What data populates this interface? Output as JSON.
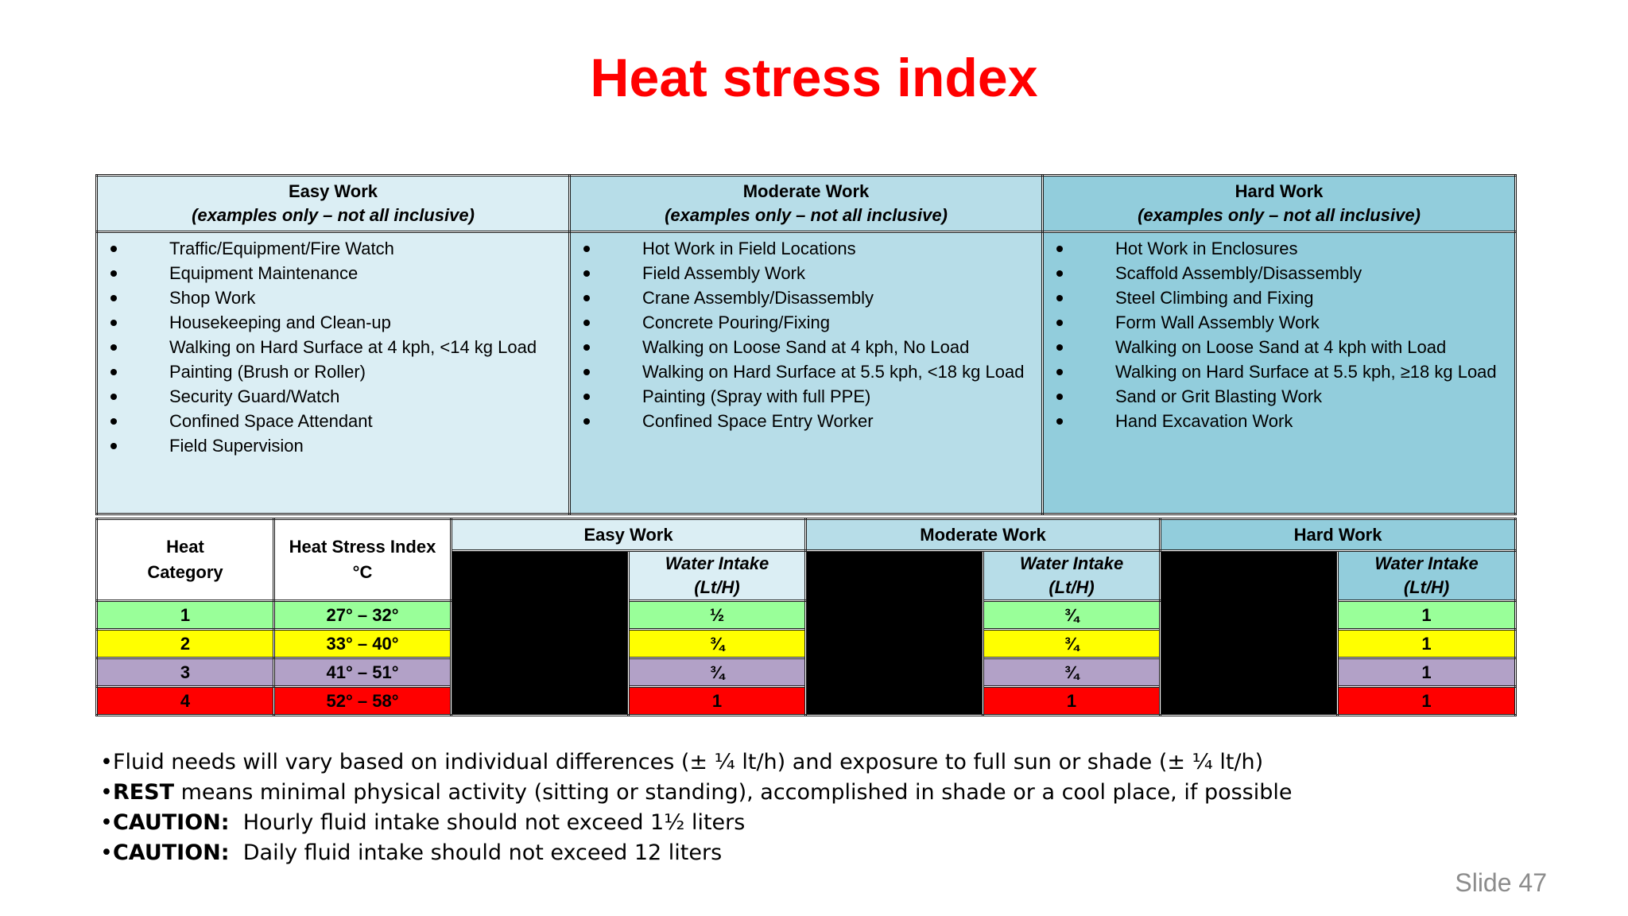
{
  "title": "Heat stress index",
  "work_types": [
    {
      "name": "Easy Work",
      "subtitle": "(examples only – not all inclusive)",
      "examples": [
        "Traffic/Equipment/Fire Watch",
        "Equipment Maintenance",
        "Shop Work",
        "Housekeeping and Clean-up",
        "Walking on Hard Surface at 4 kph, <14 kg Load",
        "Painting (Brush or Roller)",
        "Security Guard/Watch",
        "Confined Space Attendant",
        "Field Supervision"
      ]
    },
    {
      "name": "Moderate Work",
      "subtitle": "(examples only – not all inclusive)",
      "examples": [
        "Hot Work in Field Locations",
        "Field Assembly Work",
        "Crane Assembly/Disassembly",
        "Concrete Pouring/Fixing",
        "Walking on Loose Sand at 4 kph, No Load",
        "Walking on Hard Surface at 5.5 kph, <18 kg Load",
        "Painting (Spray with full PPE)",
        "Confined Space Entry Worker"
      ]
    },
    {
      "name": "Hard Work",
      "subtitle": "(examples only – not all inclusive)",
      "examples": [
        "Hot Work in Enclosures",
        "Scaffold Assembly/Disassembly",
        "Steel Climbing and Fixing",
        "Form Wall Assembly Work",
        "Walking on Loose Sand at 4 kph with Load",
        "Walking on Hard Surface at 5.5 kph, ≥18 kg Load",
        "Sand or Grit Blasting Work",
        "Hand Excavation Work"
      ]
    }
  ],
  "index_table": {
    "heat_category_header": "Heat\nCategory",
    "heat_category_line1": "Heat",
    "heat_category_line2": "Category",
    "hsi_line1": "Heat Stress Index",
    "hsi_line2": "°C",
    "group_headers": [
      "Easy Work",
      "Moderate Work",
      "Hard Work"
    ],
    "water_line1": "Water Intake",
    "water_line2": "(Lt/H)",
    "rows": [
      {
        "category": "1",
        "range": "27° – 32°",
        "easy": "½",
        "moderate": "¾",
        "hard": "1"
      },
      {
        "category": "2",
        "range": "33° – 40°",
        "easy": "¾",
        "moderate": "¾",
        "hard": "1"
      },
      {
        "category": "3",
        "range": "41° – 51°",
        "easy": "¾",
        "moderate": "¾",
        "hard": "1"
      },
      {
        "category": "4",
        "range": "52° – 58°",
        "easy": "1",
        "moderate": "1",
        "hard": "1"
      }
    ],
    "row_colors": [
      "#99ff99",
      "#ffff00",
      "#b2a1c7",
      "#ff0000"
    ]
  },
  "notes": [
    {
      "bold": "",
      "text": "Fluid needs will vary based on individual differences (± ¼ lt/h) and exposure to full sun or shade (± ¼ lt/h)"
    },
    {
      "bold": "REST",
      "text": " means minimal physical activity (sitting or standing), accomplished in shade or a cool place, if possible"
    },
    {
      "bold": "CAUTION:",
      "text": "  Hourly fluid intake should not exceed 1½ liters"
    },
    {
      "bold": "CAUTION:",
      "text": "  Daily fluid intake should not exceed 12 liters"
    }
  ],
  "notes_bullet": "•",
  "slide_label": "Slide 47"
}
